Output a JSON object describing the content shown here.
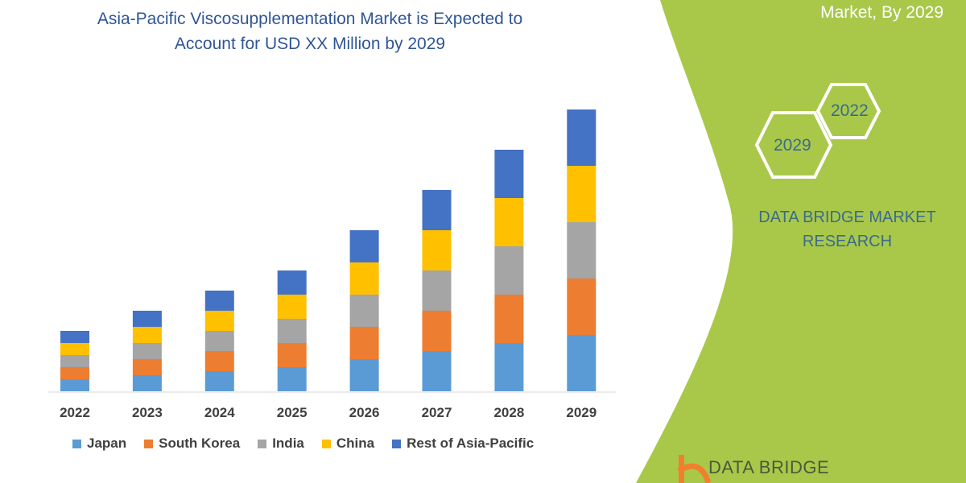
{
  "title_line1": "Asia-Pacific Viscosupplementation Market is Expected to",
  "title_line2": "Account for USD XX Million by 2029",
  "side_panel": {
    "heading_visible": "Market, By 2029",
    "hex_years": [
      "2022",
      "2029"
    ],
    "brand_line1": "DATA BRIDGE MARKET",
    "brand_line2": "RESEARCH",
    "logo_text": "DATA BRIDGE",
    "panel_color": "#a9c84a"
  },
  "chart_data": {
    "type": "bar",
    "stacked": true,
    "title": "Asia-Pacific Viscosupplementation Market is Expected to Account for USD XX Million by 2029",
    "categories": [
      "2022",
      "2023",
      "2024",
      "2025",
      "2026",
      "2027",
      "2028",
      "2029"
    ],
    "series": [
      {
        "name": "Japan",
        "color": "#5b9bd5",
        "values": [
          15,
          20,
          25,
          30,
          40,
          50,
          60,
          70
        ]
      },
      {
        "name": "South Korea",
        "color": "#ed7d31",
        "values": [
          15,
          20,
          25,
          30,
          40,
          50,
          60,
          70
        ]
      },
      {
        "name": "India",
        "color": "#a5a5a5",
        "values": [
          15,
          20,
          25,
          30,
          40,
          50,
          60,
          70
        ]
      },
      {
        "name": "China",
        "color": "#ffc000",
        "values": [
          15,
          20,
          25,
          30,
          40,
          50,
          60,
          70
        ]
      },
      {
        "name": "Rest of Asia-Pacific",
        "color": "#4472c4",
        "values": [
          15,
          20,
          25,
          30,
          40,
          50,
          60,
          70
        ]
      }
    ],
    "ylim": [
      0,
      350
    ],
    "y_axis_shown": false,
    "grid": false,
    "legend": "bottom"
  }
}
